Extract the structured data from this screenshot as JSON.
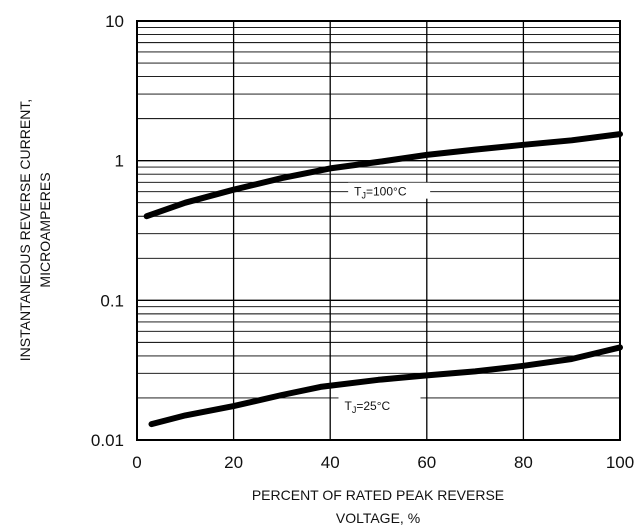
{
  "chart_data": {
    "type": "line",
    "xlabel_lines": [
      "PERCENT OF RATED PEAK REVERSE",
      "VOLTAGE, %"
    ],
    "ylabel_lines": [
      "INSTANTANEOUS REVERSE CURRENT,",
      "MICROAMPERES"
    ],
    "xlim": [
      0,
      100
    ],
    "ylim": [
      0.01,
      10
    ],
    "yscale": "log",
    "grid": true,
    "x_ticks": [
      "0",
      "20",
      "40",
      "60",
      "80",
      "100"
    ],
    "y_ticks": [
      "0.01",
      "0.1",
      "1",
      "10"
    ],
    "series": [
      {
        "name": "TJ=100°C",
        "label_main": "T",
        "label_sub": "J",
        "label_rest": "=100°C",
        "x": [
          2,
          10,
          20,
          30,
          40,
          50,
          60,
          70,
          80,
          90,
          100
        ],
        "y": [
          0.4,
          0.5,
          0.62,
          0.75,
          0.88,
          0.98,
          1.1,
          1.2,
          1.3,
          1.4,
          1.55
        ]
      },
      {
        "name": "TJ=25°C",
        "label_main": "T",
        "label_sub": "J",
        "label_rest": "=25°C",
        "x": [
          3,
          10,
          20,
          30,
          38,
          50,
          60,
          70,
          80,
          90,
          100
        ],
        "y": [
          0.013,
          0.015,
          0.0175,
          0.021,
          0.024,
          0.027,
          0.029,
          0.031,
          0.034,
          0.038,
          0.046
        ]
      }
    ]
  }
}
